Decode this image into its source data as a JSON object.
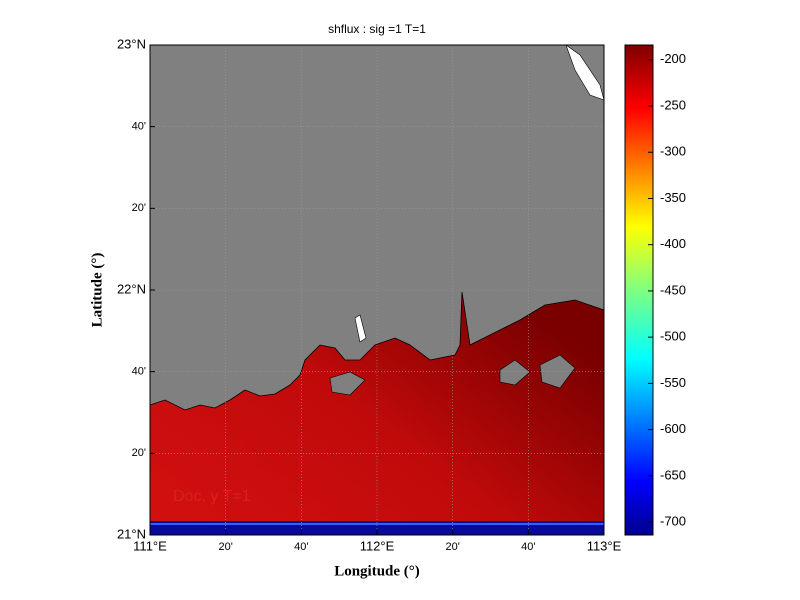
{
  "title": "shflux : sig =1   T=1",
  "x_label": "Longitude (°)",
  "y_label": "Latitude (°)",
  "annotation": "Doc. y    T=1",
  "lon_lim": [
    111,
    113
  ],
  "lat_lim": [
    21,
    23
  ],
  "lon_ticks": [
    {
      "value": 111,
      "label": "111°E"
    },
    {
      "value": 111.3333,
      "label": "20'"
    },
    {
      "value": 111.6667,
      "label": "40'"
    },
    {
      "value": 112,
      "label": "112°E"
    },
    {
      "value": 112.3333,
      "label": "20'"
    },
    {
      "value": 112.6667,
      "label": "40'"
    },
    {
      "value": 113,
      "label": "113°E"
    }
  ],
  "lat_ticks": [
    {
      "value": 21,
      "label": "21°N"
    },
    {
      "value": 21.3333,
      "label": "20'"
    },
    {
      "value": 21.6667,
      "label": "40'"
    },
    {
      "value": 22,
      "label": "22°N"
    },
    {
      "value": 22.3333,
      "label": "20'"
    },
    {
      "value": 22.6667,
      "label": "40'"
    },
    {
      "value": 23,
      "label": "23°N"
    }
  ],
  "colorbar": {
    "lim": [
      -714,
      -184
    ],
    "ticks": [
      -200,
      -250,
      -300,
      -350,
      -400,
      -450,
      -500,
      -550,
      -600,
      -650,
      -700
    ]
  }
}
